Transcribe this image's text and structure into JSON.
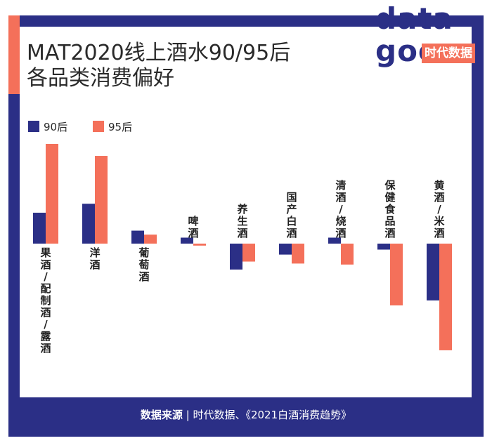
{
  "title_line1": "MAT2020线上酒水90/95后",
  "title_line2": "各品类消费偏好",
  "logo": {
    "line1": "data",
    "line2": "goo",
    "tag": "时代数据"
  },
  "source": {
    "label": "数据来源",
    "separator": "|",
    "text": "时代数据、《2021白酒消费趋势》"
  },
  "colors": {
    "navy": "#2b2f86",
    "orange": "#f4705a"
  },
  "chart_data": {
    "type": "bar",
    "title": "MAT2020线上酒水90/95后各品类消费偏好",
    "categories": [
      "果酒/配制酒/露酒",
      "洋酒",
      "葡萄酒",
      "啤酒",
      "养生酒",
      "国产白酒",
      "清酒/烧酒",
      "保健食品酒",
      "黄酒/米酒"
    ],
    "series": [
      {
        "name": "90后",
        "color": "#2b2f86",
        "values": [
          0.31,
          0.4,
          0.13,
          0.06,
          -0.26,
          -0.11,
          0.06,
          -0.06,
          -0.57
        ]
      },
      {
        "name": "95后",
        "color": "#f4705a",
        "values": [
          1.0,
          0.88,
          0.09,
          -0.02,
          -0.18,
          -0.2,
          -0.21,
          -0.62,
          -1.07
        ]
      }
    ],
    "ylim": [
      -1.1,
      1.05
    ],
    "axis_labels": false,
    "legend": "top-left",
    "grid": false
  }
}
